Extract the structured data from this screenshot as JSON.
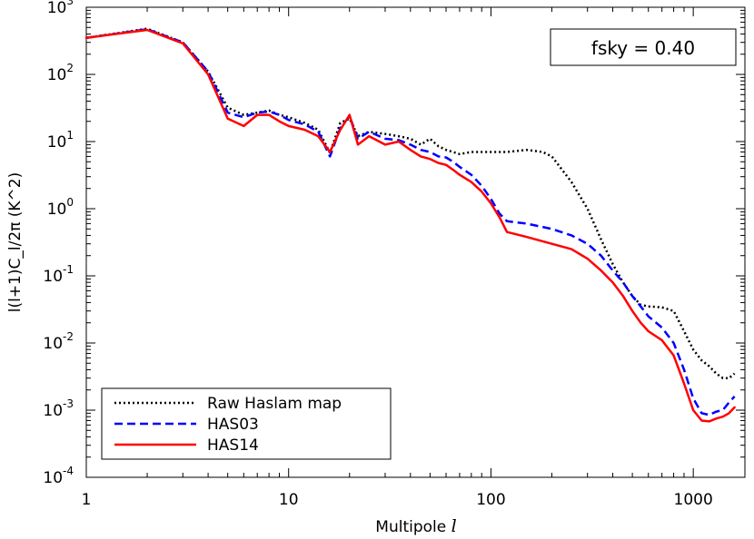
{
  "chart_data": {
    "type": "line",
    "xlabel_prefix": "Multipole ",
    "xlabel_italic": "l",
    "ylabel": "l(l+1)C_l/2π (K^2)",
    "x_scale": "log",
    "y_scale": "log",
    "xlim": [
      1,
      1800
    ],
    "ylim": [
      0.0001,
      1000
    ],
    "x_ticks": [
      {
        "value": 1,
        "label": "1"
      },
      {
        "value": 10,
        "label": "10"
      },
      {
        "value": 100,
        "label": "100"
      },
      {
        "value": 1000,
        "label": "1000"
      }
    ],
    "y_ticks": [
      {
        "value": 0.0001,
        "base": "10",
        "exp": "-4"
      },
      {
        "value": 0.001,
        "base": "10",
        "exp": "-3"
      },
      {
        "value": 0.01,
        "base": "10",
        "exp": "-2"
      },
      {
        "value": 0.1,
        "base": "10",
        "exp": "-1"
      },
      {
        "value": 1,
        "base": "10",
        "exp": "0"
      },
      {
        "value": 10,
        "base": "10",
        "exp": "1"
      },
      {
        "value": 100,
        "base": "10",
        "exp": "2"
      },
      {
        "value": 1000,
        "base": "10",
        "exp": "3"
      }
    ],
    "annotation": "fsky = 0.40",
    "legend_position": "bottom-left",
    "grid": false,
    "series": [
      {
        "name": "Raw Haslam map",
        "color": "#000000",
        "style": "dotted",
        "points": [
          [
            1,
            350
          ],
          [
            2,
            480
          ],
          [
            3,
            300
          ],
          [
            4,
            110
          ],
          [
            5,
            32
          ],
          [
            6,
            25
          ],
          [
            7,
            27
          ],
          [
            8,
            29
          ],
          [
            9,
            25
          ],
          [
            10,
            23
          ],
          [
            12,
            19
          ],
          [
            14,
            15
          ],
          [
            16,
            6.8
          ],
          [
            18,
            19
          ],
          [
            20,
            22
          ],
          [
            22,
            12
          ],
          [
            25,
            14
          ],
          [
            30,
            13
          ],
          [
            35,
            12
          ],
          [
            40,
            11
          ],
          [
            45,
            9
          ],
          [
            50,
            11
          ],
          [
            55,
            8.5
          ],
          [
            60,
            7.5
          ],
          [
            65,
            7
          ],
          [
            70,
            6.5
          ],
          [
            80,
            7
          ],
          [
            100,
            7
          ],
          [
            120,
            7
          ],
          [
            150,
            7.5
          ],
          [
            180,
            7
          ],
          [
            200,
            6
          ],
          [
            250,
            2.5
          ],
          [
            300,
            1.0
          ],
          [
            350,
            0.35
          ],
          [
            400,
            0.15
          ],
          [
            450,
            0.08
          ],
          [
            500,
            0.05
          ],
          [
            550,
            0.037
          ],
          [
            600,
            0.035
          ],
          [
            700,
            0.034
          ],
          [
            800,
            0.03
          ],
          [
            900,
            0.015
          ],
          [
            1000,
            0.008
          ],
          [
            1100,
            0.0055
          ],
          [
            1200,
            0.0045
          ],
          [
            1300,
            0.0035
          ],
          [
            1400,
            0.003
          ],
          [
            1500,
            0.003
          ],
          [
            1600,
            0.0035
          ]
        ]
      },
      {
        "name": "HAS03",
        "color": "#0000ff",
        "style": "dashed",
        "points": [
          [
            1,
            350
          ],
          [
            2,
            470
          ],
          [
            3,
            300
          ],
          [
            4,
            110
          ],
          [
            5,
            27
          ],
          [
            6,
            23
          ],
          [
            7,
            27
          ],
          [
            8,
            28
          ],
          [
            9,
            25
          ],
          [
            10,
            21
          ],
          [
            12,
            18
          ],
          [
            14,
            14
          ],
          [
            16,
            6
          ],
          [
            18,
            16
          ],
          [
            20,
            24
          ],
          [
            22,
            11
          ],
          [
            25,
            14
          ],
          [
            30,
            11
          ],
          [
            35,
            10.5
          ],
          [
            40,
            9
          ],
          [
            45,
            7.5
          ],
          [
            50,
            7
          ],
          [
            55,
            6
          ],
          [
            60,
            5.8
          ],
          [
            65,
            5
          ],
          [
            70,
            4.2
          ],
          [
            80,
            3.2
          ],
          [
            90,
            2.2
          ],
          [
            100,
            1.4
          ],
          [
            110,
            0.85
          ],
          [
            120,
            0.65
          ],
          [
            150,
            0.6
          ],
          [
            200,
            0.5
          ],
          [
            250,
            0.4
          ],
          [
            300,
            0.3
          ],
          [
            350,
            0.2
          ],
          [
            400,
            0.12
          ],
          [
            450,
            0.08
          ],
          [
            500,
            0.05
          ],
          [
            550,
            0.035
          ],
          [
            600,
            0.025
          ],
          [
            700,
            0.017
          ],
          [
            800,
            0.01
          ],
          [
            900,
            0.004
          ],
          [
            1000,
            0.0015
          ],
          [
            1100,
            0.0009
          ],
          [
            1200,
            0.00085
          ],
          [
            1300,
            0.00095
          ],
          [
            1400,
            0.001
          ],
          [
            1500,
            0.0013
          ],
          [
            1600,
            0.0016
          ]
        ]
      },
      {
        "name": "HAS14",
        "color": "#ff0000",
        "style": "solid",
        "points": [
          [
            1,
            350
          ],
          [
            2,
            460
          ],
          [
            3,
            290
          ],
          [
            4,
            100
          ],
          [
            5,
            22
          ],
          [
            6,
            17
          ],
          [
            7,
            25
          ],
          [
            8,
            25
          ],
          [
            9,
            20
          ],
          [
            10,
            17
          ],
          [
            12,
            15
          ],
          [
            14,
            12
          ],
          [
            16,
            7
          ],
          [
            18,
            15
          ],
          [
            20,
            25
          ],
          [
            22,
            9
          ],
          [
            25,
            12
          ],
          [
            30,
            9
          ],
          [
            35,
            10
          ],
          [
            40,
            7.5
          ],
          [
            45,
            6
          ],
          [
            50,
            5.5
          ],
          [
            55,
            4.8
          ],
          [
            60,
            4.5
          ],
          [
            65,
            3.8
          ],
          [
            70,
            3.2
          ],
          [
            80,
            2.5
          ],
          [
            90,
            1.8
          ],
          [
            100,
            1.2
          ],
          [
            110,
            0.75
          ],
          [
            120,
            0.45
          ],
          [
            150,
            0.38
          ],
          [
            200,
            0.3
          ],
          [
            250,
            0.25
          ],
          [
            300,
            0.18
          ],
          [
            350,
            0.12
          ],
          [
            400,
            0.08
          ],
          [
            450,
            0.05
          ],
          [
            500,
            0.03
          ],
          [
            550,
            0.02
          ],
          [
            600,
            0.015
          ],
          [
            700,
            0.011
          ],
          [
            800,
            0.0065
          ],
          [
            900,
            0.0025
          ],
          [
            1000,
            0.001
          ],
          [
            1100,
            0.0007
          ],
          [
            1200,
            0.00068
          ],
          [
            1300,
            0.00075
          ],
          [
            1400,
            0.0008
          ],
          [
            1500,
            0.0009
          ],
          [
            1600,
            0.0011
          ]
        ]
      }
    ]
  }
}
